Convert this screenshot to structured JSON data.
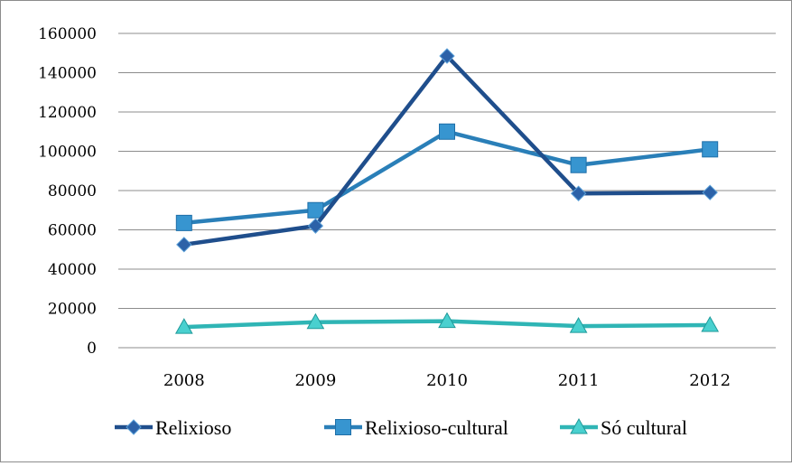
{
  "chart_data": {
    "type": "line",
    "title": "",
    "xlabel": "",
    "ylabel": "",
    "categories": [
      "2008",
      "2009",
      "2010",
      "2011",
      "2012"
    ],
    "ylim": [
      0,
      160000
    ],
    "yticks": [
      "0",
      "20000",
      "40000",
      "60000",
      "80000",
      "100000",
      "120000",
      "140000",
      "160000"
    ],
    "grid": true,
    "legend_position": "bottom",
    "series": [
      {
        "name": "Relixioso",
        "values": [
          52500,
          62000,
          148500,
          78500,
          79000
        ],
        "color": "#1f4e8c",
        "marker": "diamond"
      },
      {
        "name": "Relixioso-cultural",
        "values": [
          63500,
          70000,
          110000,
          93000,
          101000
        ],
        "color": "#2a7fb8",
        "marker": "square"
      },
      {
        "name": "Só cultural",
        "values": [
          10500,
          13000,
          13500,
          11000,
          11500
        ],
        "color": "#2fb5b5",
        "marker": "triangle"
      }
    ]
  }
}
